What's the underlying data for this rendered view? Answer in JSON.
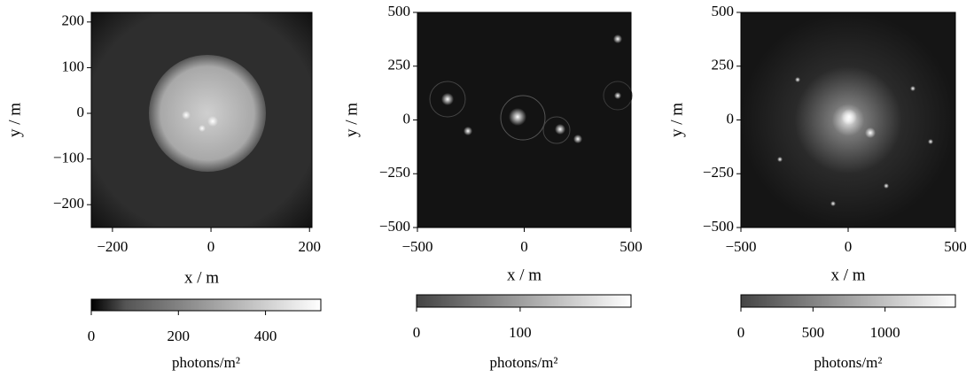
{
  "chart_data": [
    {
      "type": "image",
      "xlabel": "x / m",
      "ylabel": "y / m",
      "xlim": [
        -243,
        205
      ],
      "ylim": [
        -250,
        221
      ],
      "xticks": [
        {
          "value": -200,
          "label": "−200"
        },
        0,
        200
      ],
      "yticks": [
        {
          "value": -200,
          "label": "−200"
        },
        {
          "value": -100,
          "label": "−100"
        },
        0,
        100,
        200
      ],
      "colorbar": {
        "label": "photons/m²",
        "lim": [
          0,
          527
        ],
        "ticks": [
          0,
          200,
          400
        ]
      }
    },
    {
      "type": "image",
      "xlabel": "x / m",
      "ylabel": "y / m",
      "xlim": [
        -500,
        500
      ],
      "ylim": [
        -500,
        500
      ],
      "xticks": [
        {
          "value": -500,
          "label": "−500"
        },
        0,
        500
      ],
      "yticks": [
        {
          "value": -500,
          "label": "−500"
        },
        {
          "value": -250,
          "label": "−250"
        },
        0,
        250,
        500
      ],
      "colorbar": {
        "label": "photons/m²",
        "lim": [
          0,
          207
        ],
        "ticks": [
          0,
          100
        ]
      }
    },
    {
      "type": "image",
      "xlabel": "x / m",
      "ylabel": "y / m",
      "xlim": [
        -500,
        500
      ],
      "ylim": [
        -500,
        500
      ],
      "xticks": [
        {
          "value": -500,
          "label": "−500"
        },
        0,
        500
      ],
      "yticks": [
        {
          "value": -500,
          "label": "−500"
        },
        {
          "value": -250,
          "label": "−250"
        },
        0,
        250,
        500
      ],
      "colorbar": {
        "label": "photons/m²",
        "lim": [
          0,
          1488
        ],
        "ticks": [
          0,
          500,
          1000
        ]
      }
    }
  ]
}
